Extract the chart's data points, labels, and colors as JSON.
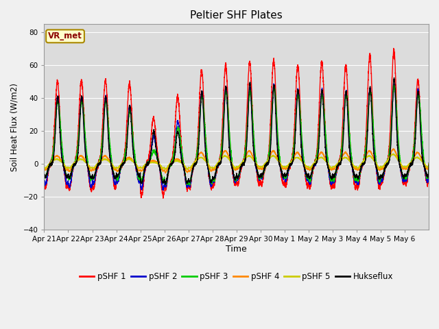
{
  "title": "Peltier SHF Plates",
  "ylabel": "Soil Heat Flux (W/m2)",
  "xlabel": "Time",
  "ylim": [
    -40,
    85
  ],
  "yticks": [
    -40,
    -20,
    0,
    20,
    40,
    60,
    80
  ],
  "xtick_labels": [
    "Apr 21",
    "Apr 22",
    "Apr 23",
    "Apr 24",
    "Apr 25",
    "Apr 26",
    "Apr 27",
    "Apr 28",
    "Apr 29",
    "Apr 30",
    "May 1",
    "May 2",
    "May 3",
    "May 4",
    "May 5",
    "May 6"
  ],
  "legend_labels": [
    "pSHF 1",
    "pSHF 2",
    "pSHF 3",
    "pSHF 4",
    "pSHF 5",
    "Hukseflux"
  ],
  "legend_colors": [
    "#ff0000",
    "#0000cc",
    "#00cc00",
    "#ff8800",
    "#cccc00",
    "#000000"
  ],
  "annotation_text": "VR_met",
  "annotation_fg": "#8b0000",
  "annotation_bg": "#ffffcc",
  "annotation_edge": "#aa8800",
  "bg_color": "#dcdcdc",
  "n_days": 16,
  "peaks_pshf1": [
    50,
    51,
    51,
    49,
    28,
    41,
    57,
    60,
    62,
    63,
    60,
    62,
    60,
    66,
    69,
    51
  ],
  "peaks_pshf2": [
    41,
    41,
    41,
    35,
    17,
    26,
    44,
    47,
    46,
    48,
    45,
    45,
    44,
    46,
    48,
    45
  ],
  "peaks_pshf3": [
    38,
    38,
    38,
    32,
    8,
    22,
    41,
    44,
    44,
    46,
    42,
    42,
    42,
    44,
    47,
    42
  ],
  "peaks_pshf4": [
    5,
    5,
    5,
    4,
    2,
    3,
    7,
    8,
    8,
    8,
    7,
    7,
    7,
    8,
    9,
    7
  ],
  "peaks_pshf5": [
    3,
    3,
    3,
    3,
    1,
    2,
    4,
    5,
    5,
    5,
    4,
    4,
    4,
    5,
    6,
    4
  ],
  "peaks_huks": [
    41,
    41,
    41,
    35,
    20,
    20,
    44,
    47,
    49,
    48,
    45,
    45,
    44,
    46,
    52,
    44
  ],
  "troughs_pshf1": [
    -23,
    -26,
    -25,
    -17,
    -32,
    -25,
    -24,
    -21,
    -21,
    -20,
    -21,
    -24,
    -23,
    -24,
    -19,
    -20
  ],
  "troughs_pshf2": [
    -20,
    -23,
    -20,
    -18,
    -25,
    -23,
    -22,
    -18,
    -15,
    -14,
    -16,
    -20,
    -18,
    -20,
    -17,
    -17
  ],
  "troughs_pshf3": [
    -13,
    -15,
    -14,
    -15,
    -17,
    -20,
    -19,
    -17,
    -14,
    -13,
    -14,
    -17,
    -16,
    -17,
    -14,
    -14
  ],
  "troughs_pshf4": [
    -6,
    -7,
    -6,
    -7,
    -7,
    -8,
    -7,
    -6,
    -5,
    -5,
    -5,
    -6,
    -5,
    -6,
    -5,
    -5
  ],
  "troughs_pshf5": [
    -4,
    -4,
    -4,
    -4,
    -4,
    -5,
    -4,
    -4,
    -3,
    -3,
    -3,
    -4,
    -3,
    -4,
    -3,
    -3
  ],
  "troughs_huks": [
    -13,
    -14,
    -14,
    -12,
    -19,
    -19,
    -18,
    -15,
    -13,
    -12,
    -12,
    -14,
    -13,
    -14,
    -13,
    -12
  ]
}
